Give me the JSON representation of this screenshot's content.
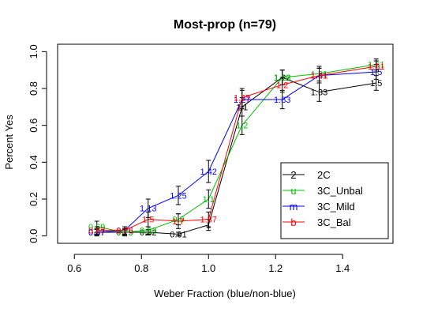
{
  "chart_data": {
    "type": "line",
    "title": "Most-prop (n=79)",
    "xlabel": "Weber Fraction (blue/non-blue)",
    "ylabel": "Percent Yes",
    "xlim": [
      0.55,
      1.55
    ],
    "ylim": [
      -0.04,
      1.04
    ],
    "xticks": [
      "0.6",
      "0.8",
      "1.0",
      "1.2",
      "1.4"
    ],
    "yticks": [
      "0.0",
      "0.2",
      "0.4",
      "0.6",
      "0.8",
      "1.0"
    ],
    "legend_position": "bottom-right",
    "series": [
      {
        "name": "2C",
        "symbol": "2",
        "color": "#000000",
        "x": [
          0.667,
          0.75,
          0.82,
          0.91,
          1.0,
          1.1,
          1.22,
          1.33,
          1.5
        ],
        "y": [
          0.02,
          0.02,
          0.02,
          0.01,
          0.06,
          0.7,
          0.86,
          0.78,
          0.83
        ],
        "err": [
          0.015,
          0.015,
          0.015,
          0.01,
          0.03,
          0.05,
          0.04,
          0.05,
          0.04
        ],
        "labels": [
          "0.67",
          "0.75",
          "0.82",
          "0.91",
          "1",
          "1.1",
          "1.22",
          "1.33",
          "1.5"
        ]
      },
      {
        "name": "3C_Unbal",
        "symbol": "u",
        "color": "#00c000",
        "x": [
          0.667,
          0.75,
          0.82,
          0.91,
          1.0,
          1.1,
          1.22,
          1.33,
          1.5
        ],
        "y": [
          0.05,
          0.02,
          0.03,
          0.09,
          0.2,
          0.6,
          0.86,
          0.88,
          0.93
        ],
        "err": [
          0.03,
          0.02,
          0.02,
          0.03,
          0.05,
          0.05,
          0.04,
          0.04,
          0.03
        ],
        "labels": [
          "0.69",
          "0.75",
          "0.82",
          "0.9",
          "1.1",
          "1.2",
          "1.18",
          "1.31",
          "1.51"
        ]
      },
      {
        "name": "3C_Mild",
        "symbol": "m",
        "color": "#0000ff",
        "x": [
          0.667,
          0.75,
          0.82,
          0.91,
          1.0,
          1.1,
          1.22,
          1.33,
          1.5
        ],
        "y": [
          0.02,
          0.03,
          0.15,
          0.22,
          0.35,
          0.74,
          0.74,
          0.87,
          0.89
        ],
        "err": [
          0.02,
          0.02,
          0.05,
          0.05,
          0.06,
          0.05,
          0.05,
          0.04,
          0.04
        ],
        "labels": [
          "0.67",
          "0.76",
          "1.13",
          "1.25",
          "1.42",
          "1.27",
          "1.83",
          "1.41",
          "1.5"
        ]
      },
      {
        "name": "3C_Bal",
        "symbol": "b",
        "color": "#ff0000",
        "x": [
          0.667,
          0.75,
          0.82,
          0.91,
          1.0,
          1.1,
          1.22,
          1.33,
          1.5
        ],
        "y": [
          0.03,
          0.03,
          0.09,
          0.08,
          0.09,
          0.75,
          0.82,
          0.87,
          0.92
        ],
        "err": [
          0.02,
          0.02,
          0.04,
          0.04,
          0.04,
          0.05,
          0.04,
          0.04,
          0.03
        ],
        "labels": [
          "0.67",
          "0.75",
          "1.5",
          "1.7",
          "1.87",
          "1.27",
          "1.2",
          "1.31",
          "1.51"
        ]
      }
    ]
  }
}
